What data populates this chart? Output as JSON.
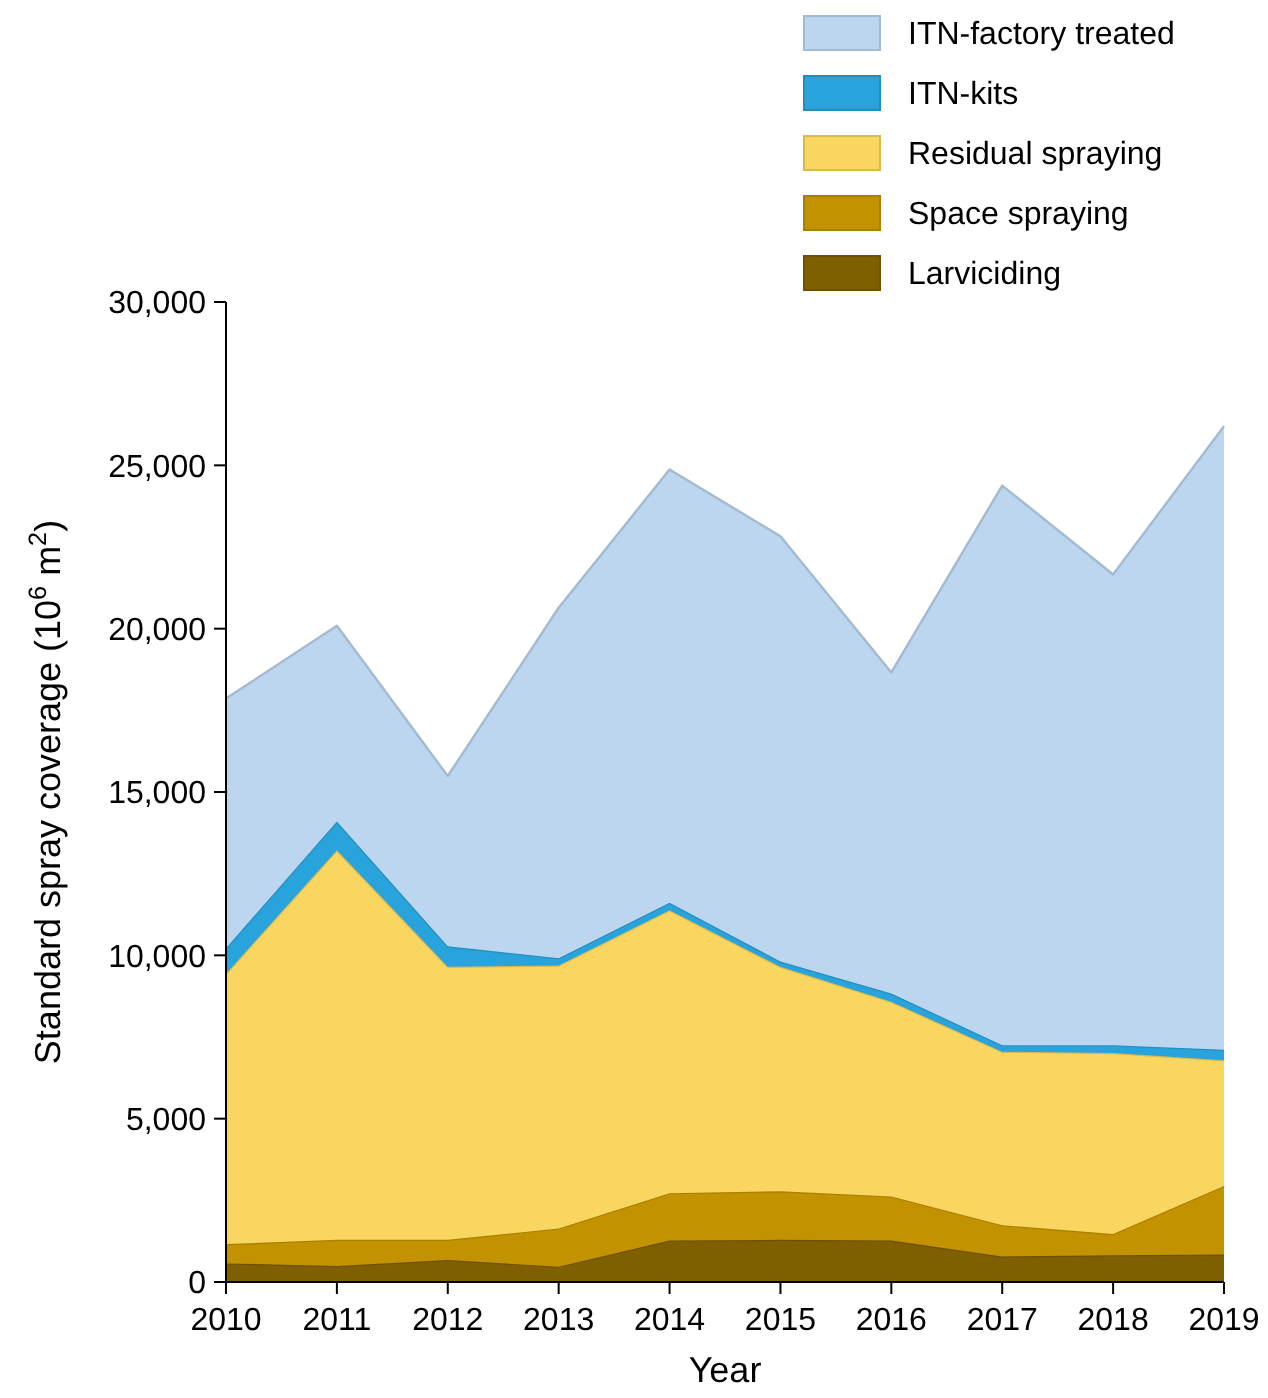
{
  "chart_data": {
    "type": "area",
    "stacked": true,
    "xlabel": "Year",
    "ylabel": "Standard spray coverage (10$^{6}$ m$^{2}$)",
    "x": [
      2010,
      2011,
      2012,
      2013,
      2014,
      2015,
      2016,
      2017,
      2018,
      2019
    ],
    "xlim": [
      2010,
      2019
    ],
    "xticks": [
      {
        "value": 2010,
        "label": "2010"
      },
      {
        "value": 2011,
        "label": "2011"
      },
      {
        "value": 2012,
        "label": "2012"
      },
      {
        "value": 2013,
        "label": "2013"
      },
      {
        "value": 2014,
        "label": "2014"
      },
      {
        "value": 2015,
        "label": "2015"
      },
      {
        "value": 2016,
        "label": "2016"
      },
      {
        "value": 2017,
        "label": "2017"
      },
      {
        "value": 2018,
        "label": "2018"
      },
      {
        "value": 2019,
        "label": "2019"
      }
    ],
    "ylim": [
      0,
      30000
    ],
    "yticks": [
      {
        "value": 0,
        "label": "0"
      },
      {
        "value": 5000,
        "label": "5,000"
      },
      {
        "value": 10000,
        "label": "10,000"
      },
      {
        "value": 15000,
        "label": "15,000"
      },
      {
        "value": 20000,
        "label": "20,000"
      },
      {
        "value": 25000,
        "label": "25,000"
      },
      {
        "value": 30000,
        "label": "30,000"
      }
    ],
    "grid": false,
    "legend": "top right",
    "series": [
      {
        "name": "Larviciding",
        "color": "#7f5f00",
        "values": [
          570,
          490,
          670,
          470,
          1270,
          1290,
          1270,
          780,
          820,
          840
        ]
      },
      {
        "name": "Space spraying",
        "color": "#c39200",
        "values": [
          590,
          800,
          620,
          1170,
          1450,
          1490,
          1350,
          960,
          650,
          2100
        ]
      },
      {
        "name": "Residual spraying",
        "color": "#f9d65f",
        "values": [
          8280,
          11930,
          8360,
          8050,
          8660,
          6870,
          5960,
          5310,
          5540,
          3850
        ]
      },
      {
        "name": "ITN-kits",
        "color": "#29a3dc",
        "values": [
          780,
          880,
          630,
          220,
          230,
          160,
          250,
          200,
          240,
          320
        ]
      },
      {
        "name": "ITN-factory treated",
        "color": "#bcd6f0",
        "values": [
          7640,
          5990,
          5210,
          10730,
          13260,
          13020,
          9830,
          17130,
          14410,
          19090
        ]
      }
    ]
  }
}
